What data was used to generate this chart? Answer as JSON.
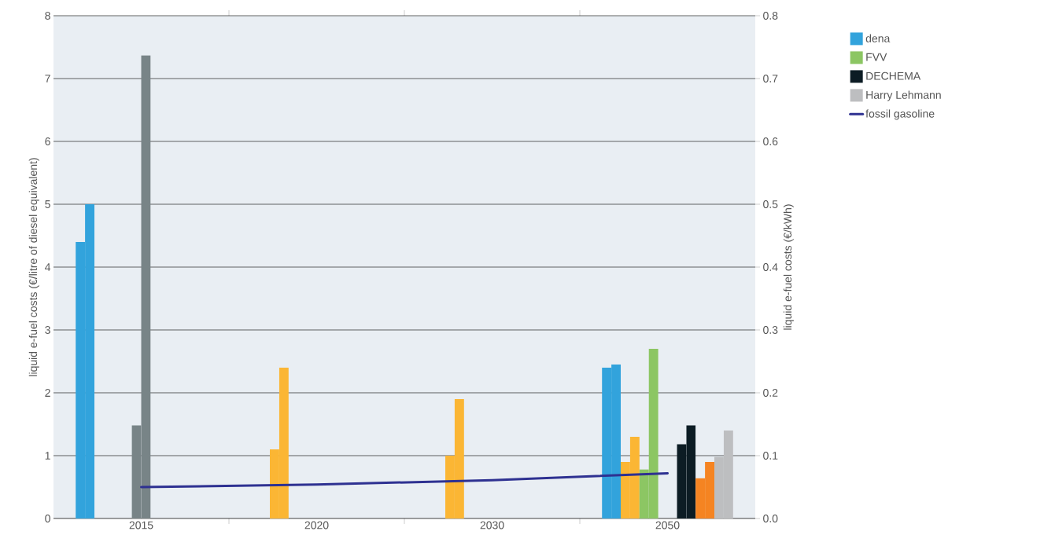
{
  "chart_data": {
    "type": "bar",
    "ylabel": "liquid e-fuel costs (€/litre of diesel equivalent)",
    "y2label": "liquid e-fuel costs (€/kWh)",
    "categories": [
      "2015",
      "2020",
      "2030",
      "2050"
    ],
    "series": [
      {
        "name": "dena",
        "color": "#32a3dc",
        "values": [
          4.4,
          null,
          null,
          2.4
        ]
      },
      {
        "color": "#32a3dc",
        "values": [
          5.0,
          null,
          null,
          2.45
        ]
      },
      {
        "color": "#fbb634",
        "values": [
          null,
          1.1,
          1.0,
          0.9
        ]
      },
      {
        "color": "#fbb634",
        "values": [
          null,
          2.4,
          1.9,
          1.3
        ]
      },
      {
        "name": "FVV",
        "color": "#8cc663",
        "values": [
          null,
          null,
          null,
          0.78
        ]
      },
      {
        "color": "#8cc663",
        "values": [
          null,
          null,
          null,
          2.7
        ]
      },
      {
        "color": "#788487",
        "values": [
          1.48,
          null,
          null,
          null
        ]
      },
      {
        "color": "#788487",
        "values": [
          7.37,
          null,
          null,
          null
        ]
      },
      {
        "name": "DECHEMA",
        "color": "#0c1c24",
        "values": [
          null,
          null,
          null,
          1.18
        ]
      },
      {
        "color": "#0c1c24",
        "values": [
          null,
          null,
          null,
          1.48
        ]
      },
      {
        "color": "#f58422",
        "values": [
          null,
          null,
          null,
          0.64
        ]
      },
      {
        "color": "#f58422",
        "values": [
          null,
          null,
          null,
          0.9
        ]
      },
      {
        "name": "Harry Lehmann",
        "color": "#bdbec0",
        "values": [
          null,
          null,
          null,
          0.98
        ]
      },
      {
        "color": "#bdbec0",
        "values": [
          null,
          null,
          null,
          1.4
        ]
      },
      {
        "name": "fossil gasoline",
        "type": "line",
        "color": "#2e3191",
        "values": [
          0.5,
          0.54,
          0.61,
          0.72
        ]
      }
    ],
    "ylim": [
      0,
      8
    ],
    "yticks": [
      0,
      1,
      2,
      3,
      4,
      5,
      6,
      7,
      8
    ],
    "y2lim": [
      0,
      0.8
    ],
    "y2ticks": [
      {
        "value": 0,
        "label": "0.0"
      },
      0.1,
      0.2,
      0.3,
      0.4,
      0.5,
      0.6,
      0.7,
      0.8
    ],
    "grid": "y",
    "legend": "right"
  }
}
